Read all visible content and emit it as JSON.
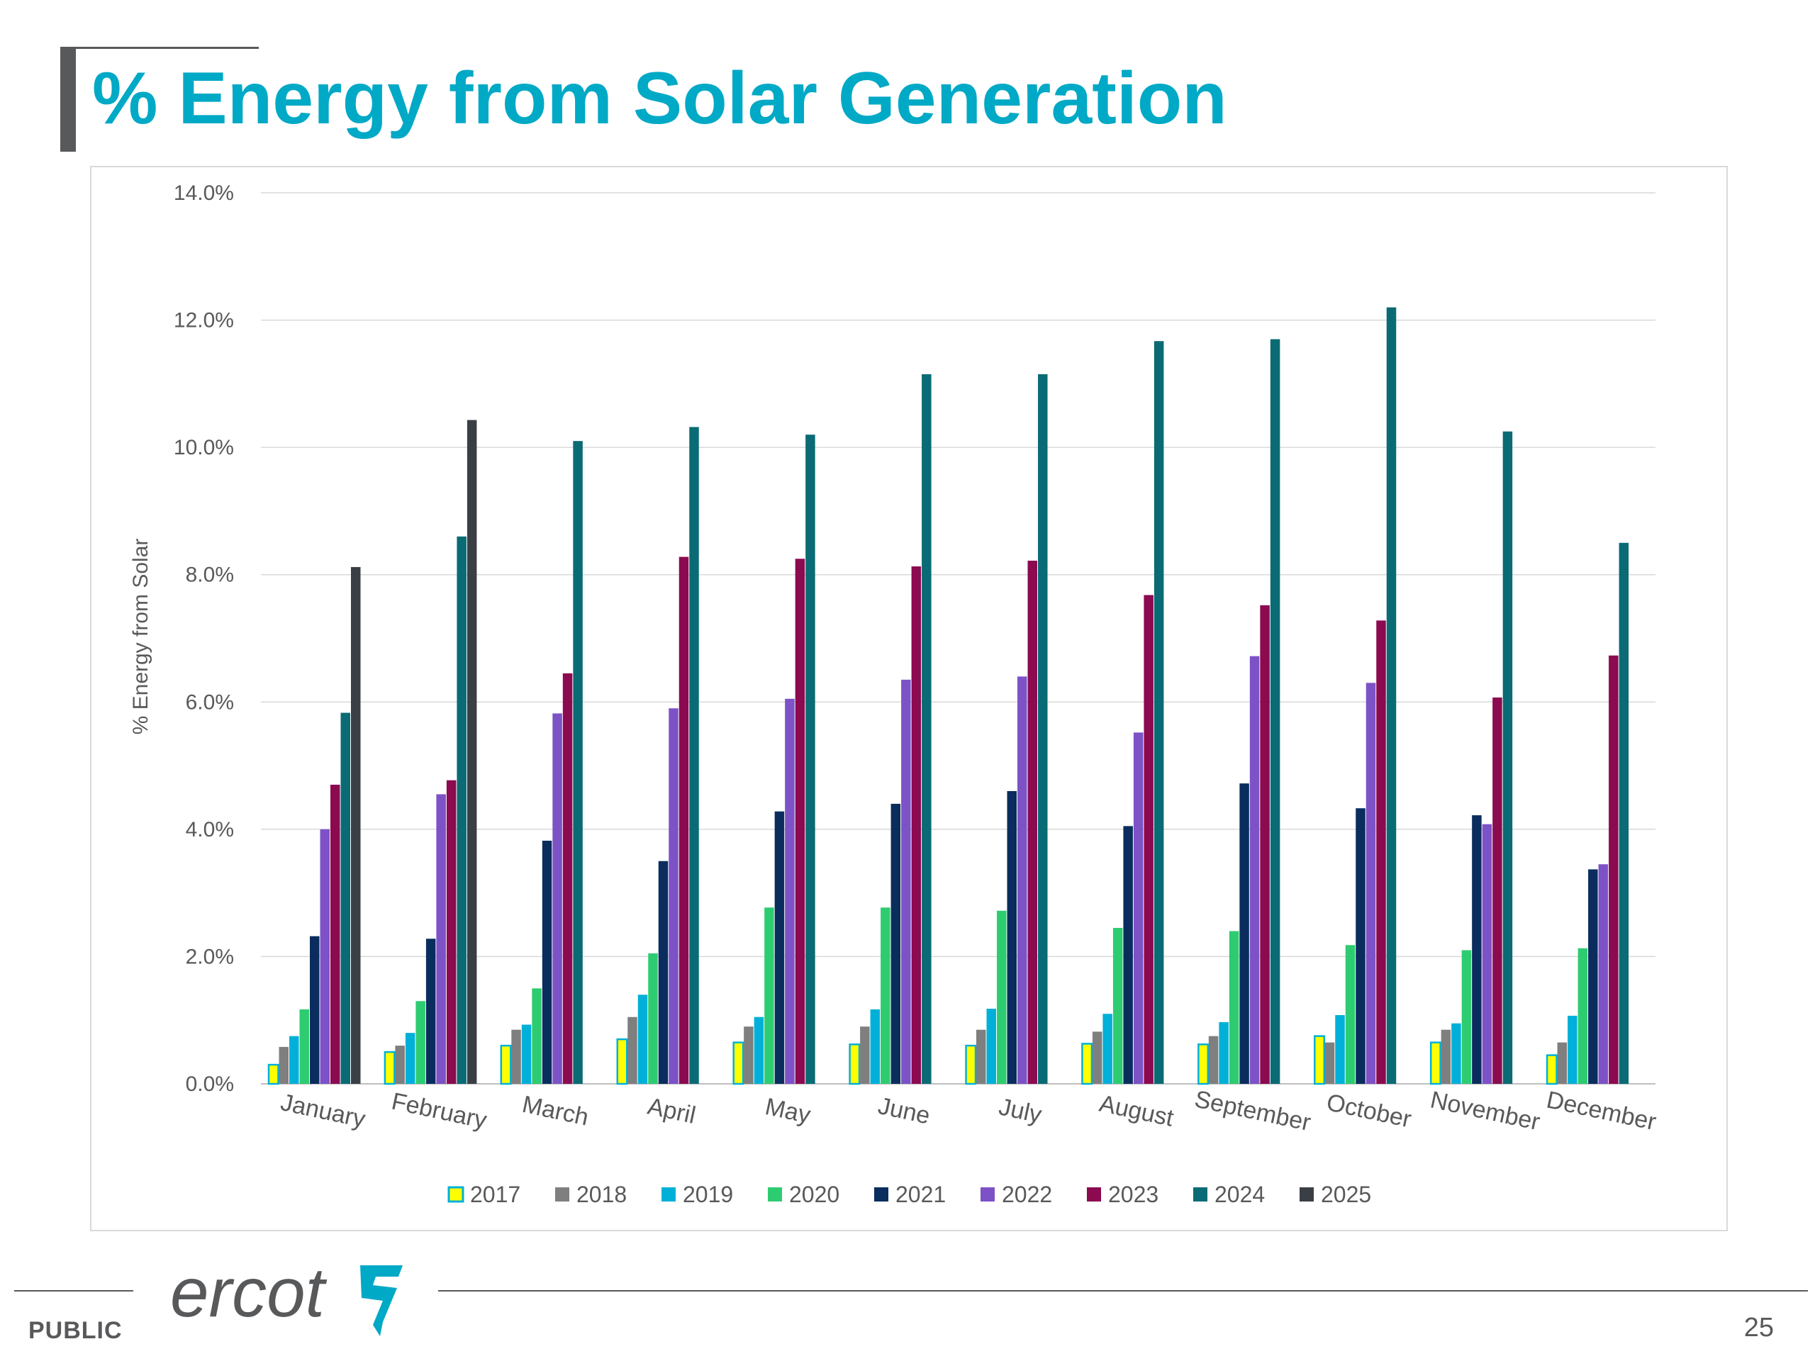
{
  "slide": {
    "title": "% Energy from Solar Generation",
    "footer_label": "PUBLIC",
    "page_number": "25",
    "logo_text": "ercot",
    "accent_color": "#00a9c5"
  },
  "chart_data": {
    "type": "bar",
    "title": "",
    "xlabel": "",
    "ylabel": "% Energy from Solar",
    "ylim": [
      0,
      14
    ],
    "yticks": [
      0,
      2,
      4,
      6,
      8,
      10,
      12,
      14
    ],
    "ytick_labels": [
      "0.0%",
      "2.0%",
      "4.0%",
      "6.0%",
      "8.0%",
      "10.0%",
      "12.0%",
      "14.0%"
    ],
    "grid": true,
    "legend_position": "bottom",
    "categories": [
      "January",
      "February",
      "March",
      "April",
      "May",
      "June",
      "July",
      "August",
      "September",
      "October",
      "November",
      "December"
    ],
    "series": [
      {
        "name": "2017",
        "color": "#ffff00",
        "border": "#00b0d8",
        "values": [
          0.3,
          0.5,
          0.6,
          0.7,
          0.65,
          0.62,
          0.6,
          0.63,
          0.62,
          0.75,
          0.65,
          0.45
        ]
      },
      {
        "name": "2018",
        "color": "#7f7f7f",
        "values": [
          0.58,
          0.6,
          0.85,
          1.05,
          0.9,
          0.9,
          0.85,
          0.82,
          0.75,
          0.65,
          0.85,
          0.65
        ]
      },
      {
        "name": "2019",
        "color": "#00b0d8",
        "values": [
          0.75,
          0.8,
          0.93,
          1.4,
          1.05,
          1.17,
          1.18,
          1.1,
          0.97,
          1.08,
          0.95,
          1.07
        ]
      },
      {
        "name": "2020",
        "color": "#2ecc71",
        "values": [
          1.17,
          1.3,
          1.5,
          2.05,
          2.77,
          2.77,
          2.72,
          2.45,
          2.4,
          2.18,
          2.1,
          2.13
        ]
      },
      {
        "name": "2021",
        "color": "#0a2d5e",
        "values": [
          2.32,
          2.28,
          3.82,
          3.5,
          4.28,
          4.4,
          4.6,
          4.05,
          4.72,
          4.33,
          4.22,
          3.37
        ]
      },
      {
        "name": "2022",
        "color": "#7d52c7",
        "values": [
          4.0,
          4.55,
          5.82,
          5.9,
          6.05,
          6.35,
          6.4,
          5.52,
          6.72,
          6.3,
          4.08,
          3.45
        ]
      },
      {
        "name": "2023",
        "color": "#8b0a50",
        "values": [
          4.7,
          4.77,
          6.45,
          8.28,
          8.25,
          8.13,
          8.22,
          7.68,
          7.52,
          7.28,
          6.07,
          6.73
        ]
      },
      {
        "name": "2024",
        "color": "#0a6b74",
        "values": [
          5.83,
          8.6,
          10.1,
          10.32,
          10.2,
          11.15,
          11.15,
          11.67,
          11.7,
          12.2,
          10.25,
          8.5
        ]
      },
      {
        "name": "2025",
        "color": "#3a3f45",
        "values": [
          8.12,
          10.43,
          null,
          null,
          null,
          null,
          null,
          null,
          null,
          null,
          null,
          null
        ]
      }
    ]
  }
}
